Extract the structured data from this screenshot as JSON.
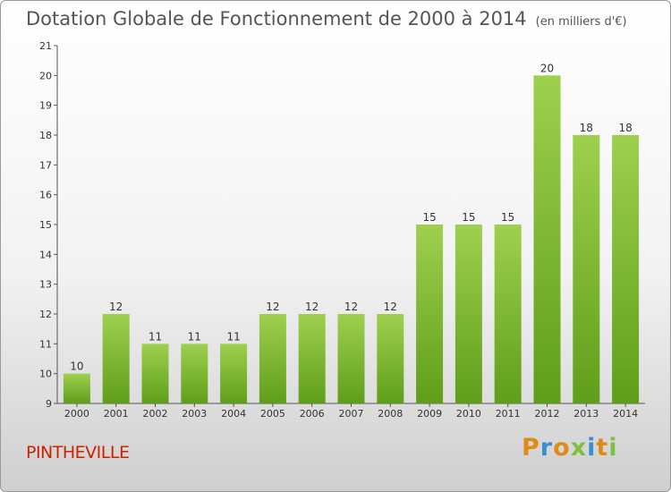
{
  "header": {
    "title": "Dotation Globale de Fonctionnement de 2000 à 2014",
    "subtitle": "(en milliers d'€)"
  },
  "footer": {
    "city": "PINTHEVILLE",
    "logo_text": "Proxiti",
    "logo_colors": [
      "#e08a1a",
      "#3b8fd0",
      "#e08a1a",
      "#7fbf3f",
      "#3b8fd0",
      "#e08a1a",
      "#7fbf3f"
    ]
  },
  "chart_data": {
    "type": "bar",
    "title": "Dotation Globale de Fonctionnement de 2000 à 2014",
    "subtitle": "(en milliers d'€)",
    "xlabel": "",
    "ylabel": "",
    "categories": [
      "2000",
      "2001",
      "2002",
      "2003",
      "2004",
      "2005",
      "2006",
      "2007",
      "2008",
      "2009",
      "2010",
      "2011",
      "2012",
      "2013",
      "2014"
    ],
    "values": [
      10,
      12,
      11,
      11,
      11,
      12,
      12,
      12,
      12,
      15,
      15,
      15,
      20,
      18,
      18
    ],
    "ylim": [
      9,
      21
    ],
    "yticks": [
      9,
      10,
      11,
      12,
      13,
      14,
      15,
      16,
      17,
      18,
      19,
      20,
      21
    ],
    "grid": false,
    "bar_color_top": "#9ed04e",
    "bar_color_bottom": "#5f9e1a"
  }
}
